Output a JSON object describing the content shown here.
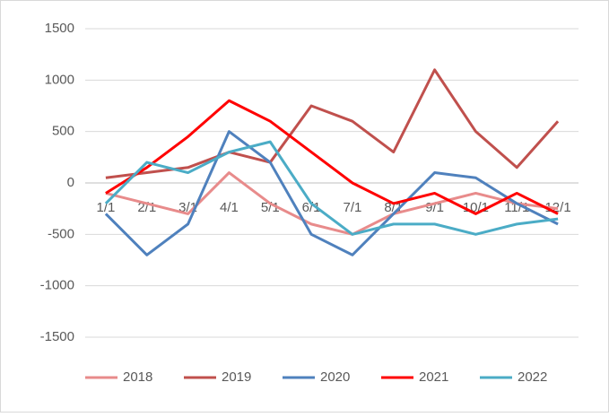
{
  "chart_data": {
    "type": "line",
    "categories": [
      "1/1",
      "2/1",
      "3/1",
      "4/1",
      "5/1",
      "6/1",
      "7/1",
      "8/1",
      "9/1",
      "10/1",
      "11/1",
      "12/1"
    ],
    "series": [
      {
        "name": "2018",
        "color": "#e88b8b",
        "values": [
          -100,
          -200,
          -300,
          100,
          -200,
          -400,
          -500,
          -300,
          -200,
          -100,
          -200,
          -250
        ]
      },
      {
        "name": "2019",
        "color": "#c0504d",
        "values": [
          50,
          100,
          150,
          300,
          200,
          750,
          600,
          300,
          1100,
          500,
          150,
          600
        ]
      },
      {
        "name": "2020",
        "color": "#4f81bd",
        "values": [
          -300,
          -700,
          -400,
          500,
          200,
          -500,
          -700,
          -300,
          100,
          50,
          -200,
          -400
        ]
      },
      {
        "name": "2021",
        "color": "#ff0000",
        "values": [
          -100,
          150,
          450,
          800,
          600,
          300,
          0,
          -200,
          -100,
          -300,
          -100,
          -300
        ]
      },
      {
        "name": "2022",
        "color": "#4bacc6",
        "values": [
          -200,
          200,
          100,
          300,
          400,
          -200,
          -500,
          -400,
          -400,
          -500,
          -400,
          -350
        ]
      }
    ],
    "ylim": [
      -1500,
      1500
    ],
    "yticks": [
      -1500,
      -1000,
      -500,
      0,
      500,
      1000,
      1500
    ],
    "grid": true
  }
}
